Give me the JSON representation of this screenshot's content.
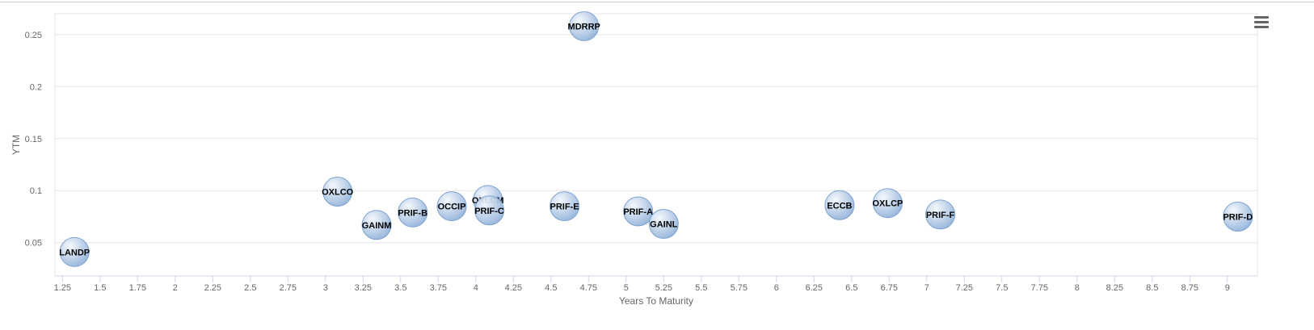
{
  "chart_data": {
    "type": "scatter",
    "title": "",
    "xlabel": "Years To Maturity",
    "ylabel": "YTM",
    "xlim": [
      1.2,
      9.2
    ],
    "ylim": [
      0.018,
      0.27
    ],
    "xticks": [
      1.25,
      1.5,
      1.75,
      2,
      2.25,
      2.5,
      2.75,
      3,
      3.25,
      3.5,
      3.75,
      4,
      4.25,
      4.5,
      4.75,
      5,
      5.25,
      5.5,
      5.75,
      6,
      6.25,
      6.5,
      6.75,
      7,
      7.25,
      7.5,
      7.75,
      8,
      8.25,
      8.5,
      8.75,
      9
    ],
    "yticks": [
      0.05,
      0.1,
      0.15,
      0.2,
      0.25
    ],
    "xtick_labels": [
      "1.25",
      "1.5",
      "1.75",
      "2",
      "2.25",
      "2.5",
      "2.75",
      "3",
      "3.25",
      "3.5",
      "3.75",
      "4",
      "4.25",
      "4.5",
      "4.75",
      "5",
      "5.25",
      "5.5",
      "5.75",
      "6",
      "6.25",
      "6.5",
      "6.75",
      "7",
      "7.25",
      "7.5",
      "7.75",
      "8",
      "8.25",
      "8.5",
      "8.75",
      "9"
    ],
    "ytick_labels": [
      "0.05",
      "0.1",
      "0.15",
      "0.2",
      "0.25"
    ],
    "grid": true,
    "points": [
      {
        "label": "LANDP",
        "x": 1.33,
        "y": 0.041
      },
      {
        "label": "OXLCO",
        "x": 3.08,
        "y": 0.099
      },
      {
        "label": "GAINM",
        "x": 3.34,
        "y": 0.067
      },
      {
        "label": "PRIF-B",
        "x": 3.58,
        "y": 0.079
      },
      {
        "label": "OCCIP",
        "x": 3.84,
        "y": 0.085
      },
      {
        "label": "OXLCM",
        "x": 4.08,
        "y": 0.091
      },
      {
        "label": "PRIF-C",
        "x": 4.09,
        "y": 0.081
      },
      {
        "label": "PRIF-E",
        "x": 4.59,
        "y": 0.085
      },
      {
        "label": "MDRRP",
        "x": 4.72,
        "y": 0.258
      },
      {
        "label": "PRIF-A",
        "x": 5.08,
        "y": 0.08
      },
      {
        "label": "GAINL",
        "x": 5.25,
        "y": 0.068
      },
      {
        "label": "ECCB",
        "x": 6.42,
        "y": 0.086
      },
      {
        "label": "OXLCP",
        "x": 6.74,
        "y": 0.088
      },
      {
        "label": "PRIF-F",
        "x": 7.09,
        "y": 0.077
      },
      {
        "label": "PRIF-D",
        "x": 9.07,
        "y": 0.075
      }
    ],
    "colors": {
      "grid": "#e6e6e6",
      "axis": "#ccd6eb",
      "bubble_light": "#f4f8fd",
      "bubble_dark": "#8fb0d8",
      "bubble_edge": "#7ea3cf"
    }
  }
}
